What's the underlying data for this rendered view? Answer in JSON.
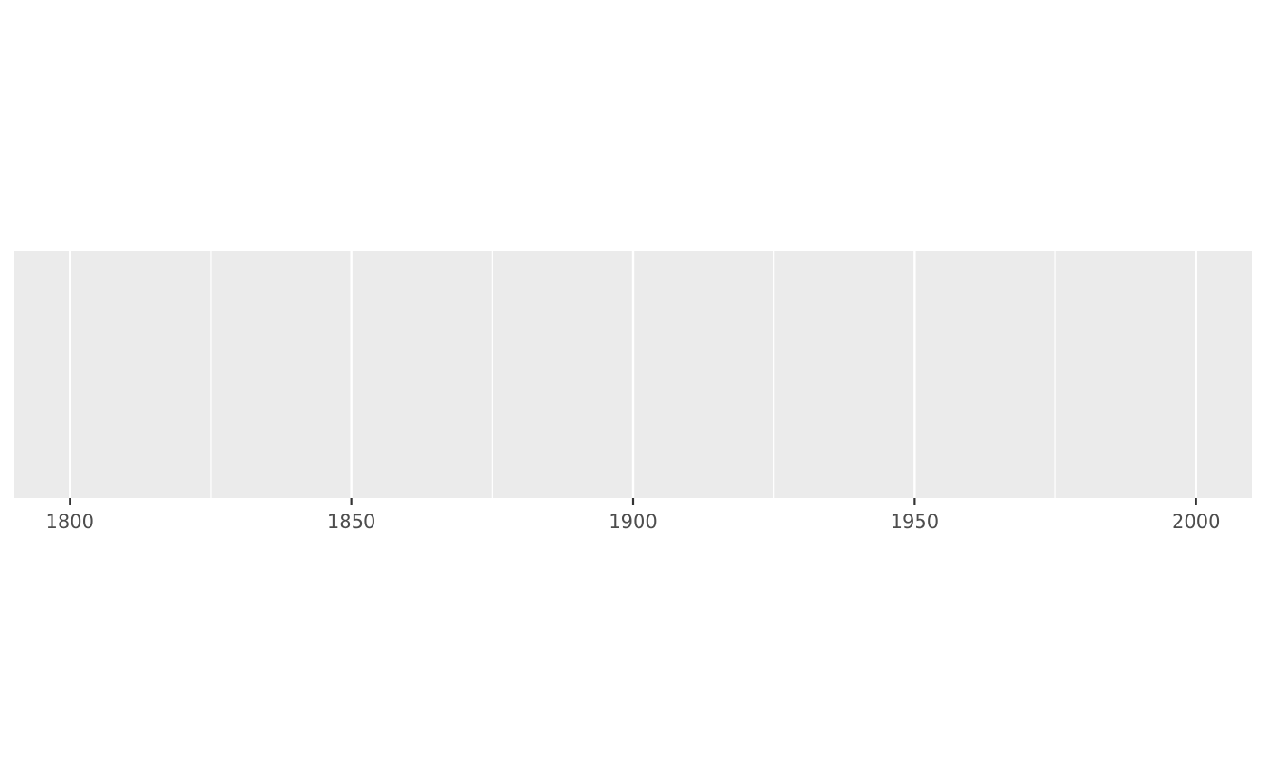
{
  "chart_data": {
    "type": "scatter",
    "title": "",
    "xlabel": "",
    "ylabel": "",
    "x": [],
    "y": [],
    "xlim": [
      1790,
      2010
    ],
    "x_ticks": [
      1800,
      1850,
      1900,
      1950,
      2000
    ],
    "x_tick_labels": [
      "1800",
      "1850",
      "1900",
      "1950",
      "2000"
    ],
    "x_minor_ticks": [
      1825,
      1875,
      1925,
      1975
    ],
    "y_ticks": [],
    "grid": true,
    "legend": "none",
    "colors": {
      "panel_background": "#ebebeb",
      "grid_major": "#ffffff",
      "grid_minor": "#ffffff",
      "tick_mark": "#333333",
      "tick_label": "#4d4d4d"
    }
  }
}
